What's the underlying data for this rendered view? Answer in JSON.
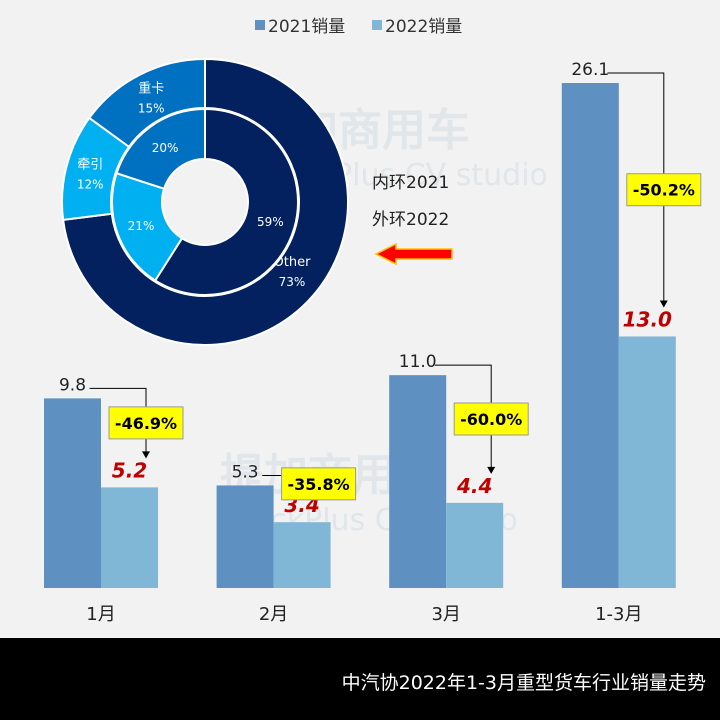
{
  "chart_data": {
    "type": "bar",
    "title": "中汽协2022年1-3月重型货车行业销量走势",
    "categories": [
      "1月",
      "2月",
      "3月",
      "1-3月"
    ],
    "series": [
      {
        "name": "2021销量",
        "values": [
          9.8,
          5.3,
          11.0,
          26.1
        ],
        "color": "#5e91c2"
      },
      {
        "name": "2022销量",
        "values": [
          5.2,
          3.4,
          4.4,
          13.0
        ],
        "color": "#80b6d6"
      }
    ],
    "value_labels_2021": [
      "9.8",
      "5.3",
      "11.0",
      "26.1"
    ],
    "value_labels_2022": [
      "5.2",
      "3.4",
      "4.4",
      "13.0"
    ],
    "changes": [
      "-46.9%",
      "-35.8%",
      "-60.0%",
      "-50.2%"
    ],
    "ylim": [
      0,
      26.1
    ],
    "legend_placement": "top-center",
    "donut": {
      "note_inner": "内环2021",
      "note_outer": "外环2022",
      "outer": [
        {
          "label": "Other",
          "value": 73,
          "text": "73%",
          "color": "#03215e"
        },
        {
          "label": "牵引",
          "value": 12,
          "text": "12%",
          "color": "#00b0f0"
        },
        {
          "label": "重卡",
          "value": 15,
          "text": "15%",
          "color": "#0070c0"
        }
      ],
      "inner": [
        {
          "label": "Other",
          "value": 59,
          "text": "59%",
          "color": "#03215e"
        },
        {
          "label": "牵引",
          "value": 21,
          "text": "21%",
          "color": "#00b0f0"
        },
        {
          "label": "重卡",
          "value": 20,
          "text": "20%",
          "color": "#0070c0"
        }
      ]
    },
    "watermark": "提加商用车 TruckPlus CV studio"
  }
}
